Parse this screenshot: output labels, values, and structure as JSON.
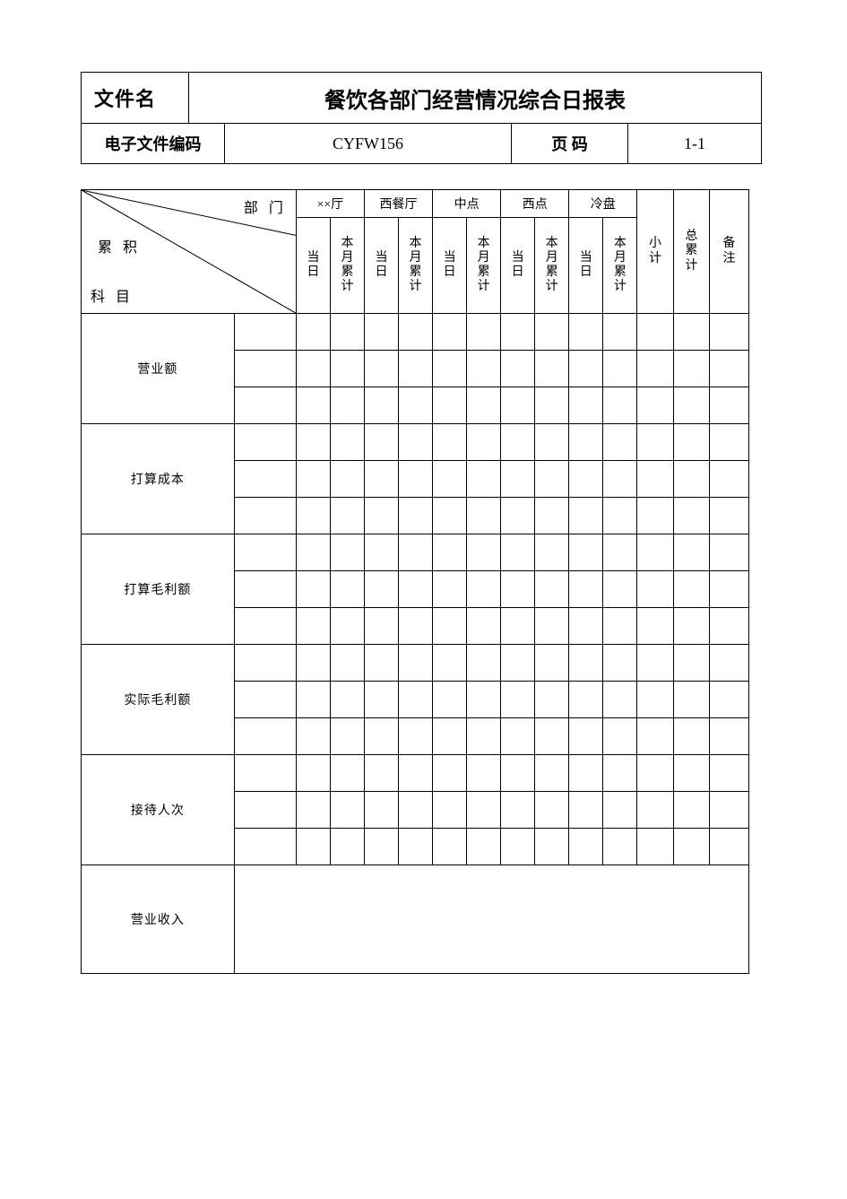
{
  "header": {
    "file_label": "文件名",
    "title": "餐饮各部门经营情况综合日报表",
    "code_label": "电子文件编码",
    "code_value": "CYFW156",
    "page_label": "页  码",
    "page_value": "1-1"
  },
  "diag": {
    "dept": "部  门",
    "acc": "累  积",
    "subject": "科  目"
  },
  "departments": [
    "××厅",
    "西餐厅",
    "中点",
    "西点",
    "冷盘"
  ],
  "sub_headers": {
    "today": "当日",
    "month_acc": "本月累计"
  },
  "tail_headers": {
    "subtotal": "小计",
    "grand_total": "总累计",
    "remark": "备注"
  },
  "row_labels": {
    "revenue": "营业额",
    "planned_cost": "打算成本",
    "planned_gross": "打算毛利额",
    "actual_gross": "实际毛利额",
    "guests": "接待人次",
    "income": "营业收入"
  },
  "style": {
    "border_color": "#000000",
    "background_color": "#ffffff",
    "title_fontsize": 24,
    "label_fontsize": 16,
    "small_fontsize": 14,
    "col_widths": {
      "diag_label": 148,
      "diag_extra": 60,
      "dept_sub": 33,
      "tail": 35
    },
    "row_heights": {
      "dept_header": 30,
      "sub_header": 106,
      "data": 40,
      "income": 120
    }
  }
}
